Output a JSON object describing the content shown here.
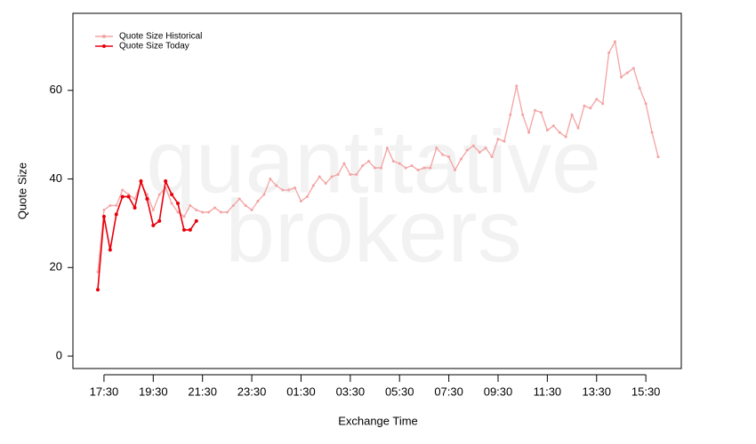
{
  "chart_data": {
    "type": "line",
    "watermark": [
      "quantitative",
      "brokers"
    ],
    "xlabel": "Exchange Time",
    "ylabel": "Quote Size",
    "x": [
      "17:15",
      "17:30",
      "17:45",
      "18:00",
      "18:15",
      "18:30",
      "18:45",
      "19:00",
      "19:15",
      "19:30",
      "19:45",
      "20:00",
      "20:15",
      "20:30",
      "20:45",
      "21:00",
      "21:15",
      "21:30",
      "21:45",
      "22:00",
      "22:15",
      "22:30",
      "22:45",
      "23:00",
      "23:15",
      "23:30",
      "23:45",
      "00:00",
      "00:15",
      "00:30",
      "00:45",
      "01:00",
      "01:15",
      "01:30",
      "01:45",
      "02:00",
      "02:15",
      "02:30",
      "02:45",
      "03:00",
      "03:15",
      "03:30",
      "03:45",
      "04:00",
      "04:15",
      "04:30",
      "04:45",
      "05:00",
      "05:15",
      "05:30",
      "05:45",
      "06:00",
      "06:15",
      "06:30",
      "06:45",
      "07:00",
      "07:15",
      "07:30",
      "07:45",
      "08:00",
      "08:15",
      "08:30",
      "08:45",
      "09:00",
      "09:15",
      "09:30",
      "09:45",
      "10:00",
      "10:15",
      "10:30",
      "10:45",
      "11:00",
      "11:15",
      "11:30",
      "11:45",
      "12:00",
      "12:15",
      "12:30",
      "12:45",
      "13:00",
      "13:15",
      "13:30",
      "13:45",
      "14:00",
      "14:15",
      "14:30",
      "14:45",
      "15:00",
      "15:15",
      "15:30",
      "15:45",
      "16:00"
    ],
    "xticks": [
      "17:30",
      "19:30",
      "21:30",
      "23:30",
      "01:30",
      "03:30",
      "05:30",
      "07:30",
      "09:30",
      "11:30",
      "13:30",
      "15:30"
    ],
    "ylim": [
      -2.8,
      77.4
    ],
    "yticks": [
      0,
      20,
      40,
      60
    ],
    "legend": "upper left",
    "series": [
      {
        "name": "Quote Size Historical",
        "color": "#f4a3a3",
        "values": [
          19,
          33,
          34,
          34,
          37.5,
          36.5,
          35.5,
          39,
          36.5,
          33,
          36.5,
          38,
          34.5,
          32.5,
          31.5,
          34,
          33,
          32.5,
          32.5,
          33.5,
          32.5,
          32.5,
          34,
          35.5,
          34,
          33,
          35,
          36.5,
          40,
          38.5,
          37.5,
          37.5,
          38,
          35,
          36,
          38.5,
          40.5,
          39,
          40.5,
          41,
          43.5,
          41,
          41,
          43,
          44,
          42.5,
          42.5,
          47,
          44,
          43.5,
          42.5,
          43,
          42,
          42.5,
          42.5,
          47,
          45.5,
          45,
          42,
          44.5,
          46.5,
          47.5,
          46,
          47,
          45,
          49,
          48.5,
          54.5,
          61,
          54.5,
          50.5,
          55.5,
          55,
          51,
          52,
          50.5,
          49.5,
          54.5,
          51.5,
          56.5,
          56,
          58,
          57,
          68.5,
          71,
          63,
          64,
          65,
          60.5,
          57,
          50.5,
          45
        ]
      },
      {
        "name": "Quote Size Today",
        "color": "#e8000b",
        "values": [
          15,
          31.5,
          24,
          32,
          36,
          36,
          33.5,
          39.5,
          35.5,
          29.5,
          30.5,
          39.5,
          36.5,
          34.5,
          28.5,
          28.5,
          30.5,
          null,
          null,
          null,
          null,
          null,
          null,
          null,
          null,
          null,
          null,
          null,
          null,
          null,
          null,
          null,
          null,
          null,
          null,
          null,
          null,
          null,
          null,
          null,
          null,
          null,
          null,
          null,
          null,
          null,
          null,
          null,
          null,
          null,
          null,
          null,
          null,
          null,
          null,
          null,
          null,
          null,
          null,
          null,
          null,
          null,
          null,
          null,
          null,
          null,
          null,
          null,
          null,
          null,
          null,
          null,
          null,
          null,
          null,
          null,
          null,
          null,
          null,
          null,
          null,
          null,
          null,
          null,
          null,
          null,
          null,
          null,
          null,
          null,
          null,
          null
        ]
      }
    ]
  }
}
